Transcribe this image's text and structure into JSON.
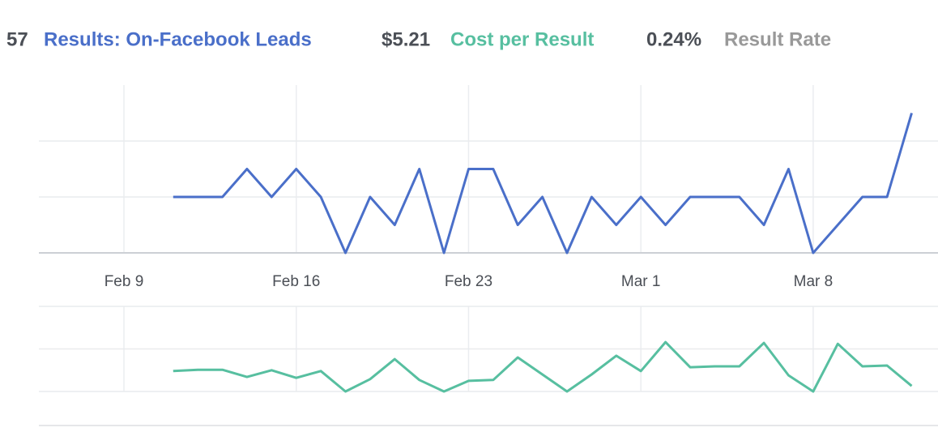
{
  "header": {
    "items": [
      {
        "value": "57",
        "label": "Results: On-Facebook Leads"
      },
      {
        "value": "$5.21",
        "label": "Cost per Result"
      },
      {
        "value": "0.24%",
        "label": "Result Rate"
      }
    ]
  },
  "chart_data": [
    {
      "type": "line",
      "categories": [
        "Feb 9",
        null,
        null,
        null,
        null,
        null,
        null,
        "Feb 16",
        null,
        null,
        null,
        null,
        null,
        null,
        "Feb 23",
        null,
        null,
        null,
        null,
        null,
        null,
        "Mar 1",
        null,
        null,
        null,
        null,
        null,
        null,
        "Mar 8",
        null,
        null,
        null,
        null
      ],
      "series": [
        {
          "name": "Results: On-Facebook Leads",
          "color": "#4a6fc9",
          "values": [
            null,
            null,
            2,
            2,
            2,
            3,
            2,
            3,
            2,
            0,
            2,
            1,
            3,
            0,
            3,
            3,
            1,
            2,
            0,
            2,
            1,
            2,
            1,
            2,
            2,
            2,
            1,
            3,
            0,
            1,
            2,
            2,
            5
          ]
        }
      ],
      "ylim": [
        0,
        6
      ],
      "yticks": [
        0,
        2,
        4
      ],
      "grid": true
    },
    {
      "type": "line",
      "categories": [
        "Feb 9",
        null,
        null,
        null,
        null,
        null,
        null,
        "Feb 16",
        null,
        null,
        null,
        null,
        null,
        null,
        "Feb 23",
        null,
        null,
        null,
        null,
        null,
        null,
        "Mar 1",
        null,
        null,
        null,
        null,
        null,
        null,
        "Mar 8",
        null,
        null,
        null,
        null
      ],
      "series": [
        {
          "name": "Cost per Result",
          "color": "#57bfa0",
          "values": [
            null,
            null,
            4.8,
            5.1,
            5.1,
            3.4,
            5.0,
            3.2,
            4.8,
            0,
            2.9,
            7.6,
            2.7,
            0,
            2.5,
            2.7,
            8.0,
            4.0,
            0,
            4.0,
            8.4,
            4.8,
            11.6,
            5.7,
            5.9,
            5.9,
            11.4,
            3.8,
            0,
            11.2,
            5.9,
            6.1,
            1.3
          ]
        }
      ],
      "ylim": [
        0,
        20
      ],
      "yticks": [
        0,
        10,
        20
      ],
      "grid": true
    }
  ]
}
